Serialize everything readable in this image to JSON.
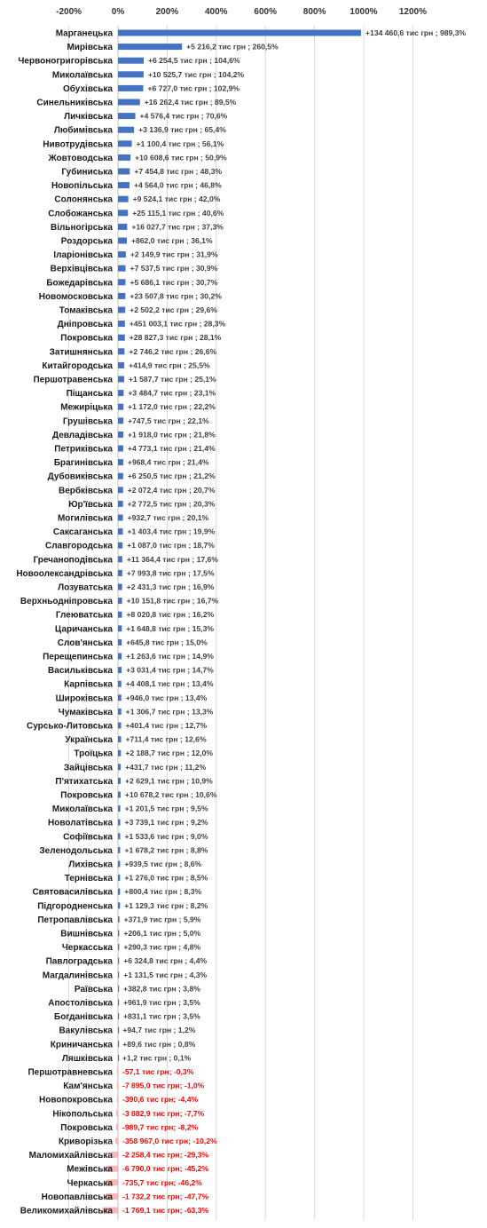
{
  "chart_data": {
    "type": "bar",
    "orientation": "horizontal",
    "xlim": [
      -200,
      1200
    ],
    "tick_values": [
      -200,
      0,
      200,
      400,
      600,
      800,
      1000,
      1200
    ],
    "tick_labels": [
      "-200%",
      "0%",
      "200%",
      "400%",
      "600%",
      "800%",
      "1000%",
      "1200%"
    ],
    "grid": true,
    "colors": {
      "positive": "#4472C4",
      "negative": "#F4B6B6",
      "positive_label": "#404040",
      "negative_label": "#FF0000",
      "grid": "#D9D9D9"
    },
    "categories": [
      "Марганецька",
      "Мирівська",
      "Червоногригорівська",
      "Миколаївська",
      "Обухівська",
      "Синельниківська",
      "Личківська",
      "Любимівська",
      "Нивотрудівська",
      "Жовтоводська",
      "Губиниська",
      "Новопільська",
      "Солонянська",
      "Слобожанська",
      "Вільногірська",
      "Роздорська",
      "Іларіонівська",
      "Верхівцівська",
      "Божедарівська",
      "Новомосковська",
      "Томаківська",
      "Дніпровська",
      "Покровська",
      "Затишнянська",
      "Китайгородська",
      "Першотравенська",
      "Піщанська",
      "Межиріцька",
      "Грушівська",
      "Девладівська",
      "Петриківська",
      "Брагинівська",
      "Дубовиківська",
      "Вербківська",
      "Юр'ївська",
      "Могилівська",
      "Саксаганська",
      "Славгородська",
      "Гречаноподівська",
      "Новоолександрівська",
      "Лозуватська",
      "Верхньодніпровська",
      "Глеюватська",
      "Царичанська",
      "Слов'янська",
      "Перещепинська",
      "Васильківська",
      "Карпівська",
      "Широківська",
      "Чумаківська",
      "Сурсько-Литовська",
      "Українська",
      "Троїцька",
      "Зайцівська",
      "П'ятихатська",
      "Покровська",
      "Миколаївська",
      "Новолатівська",
      "Софіївська",
      "Зеленодольська",
      "Лихівська",
      "Тернівська",
      "Святовасилівська",
      "Підгородненська",
      "Петропавлівська",
      "Вишнівська",
      "Черкасська",
      "Павлоградська",
      "Магдалинівська",
      "Раївська",
      "Апостолівська",
      "Богданівська",
      "Вакулівська",
      "Криничанська",
      "Ляшківська",
      "Першотравневська",
      "Кам'янська",
      "Новопокровська",
      "Нікопольська",
      "Покровська",
      "Криворізька",
      "Маломихайлівська",
      "Межівська",
      "Черкаська",
      "Новопавлівська",
      "Великомихайлівська"
    ],
    "values": [
      989.3,
      260.5,
      104.6,
      104.2,
      102.9,
      89.5,
      70.6,
      65.4,
      56.1,
      50.9,
      48.3,
      46.8,
      42.0,
      40.6,
      37.3,
      36.1,
      31.9,
      30.9,
      30.7,
      30.2,
      29.6,
      28.3,
      28.1,
      26.6,
      25.5,
      25.1,
      23.1,
      22.2,
      22.1,
      21.8,
      21.4,
      21.4,
      21.2,
      20.7,
      20.3,
      20.1,
      19.9,
      18.7,
      17.6,
      17.5,
      16.9,
      16.7,
      16.2,
      15.3,
      15.0,
      14.9,
      14.7,
      13.4,
      13.4,
      13.3,
      12.7,
      12.6,
      12.0,
      11.2,
      10.9,
      10.6,
      9.5,
      9.2,
      9.0,
      8.8,
      8.6,
      8.5,
      8.3,
      8.2,
      5.9,
      5.0,
      4.8,
      4.4,
      4.3,
      3.8,
      3.5,
      3.5,
      1.2,
      0.8,
      0.1,
      -0.3,
      -1.0,
      -4.4,
      -7.7,
      -8.2,
      -10.2,
      -29.3,
      -45.2,
      -46.2,
      -47.7,
      -63.3
    ],
    "data_labels": [
      "+134 460,6 тис грн ; 989,3%",
      "+5 216,2 тис грн ; 260,5%",
      "+6 254,5 тис грн ; 104,6%",
      "+10 525,7 тис грн ; 104,2%",
      "+6 727,0 тис грн ; 102,9%",
      "+16 262,4 тис грн ; 89,5%",
      "+4 576,4 тис грн ; 70,6%",
      "+3 136,9 тис грн ; 65,4%",
      "+1 100,4 тис грн ; 56,1%",
      "+10 608,6 тис грн ; 50,9%",
      "+7 454,8 тис грн ; 48,3%",
      "+4 564,0 тис грн ; 46,8%",
      "+9 524,1 тис грн ; 42,0%",
      "+25 115,1 тис грн ; 40,6%",
      "+16 027,7 тис грн ; 37,3%",
      "+862,0 тис грн ; 36,1%",
      "+2 149,9 тис грн ; 31,9%",
      "+7 537,5 тис грн ; 30,9%",
      "+5 686,1 тис грн ; 30,7%",
      "+23 507,8 тис грн ; 30,2%",
      "+2 502,2 тис грн ; 29,6%",
      "+451 003,1 тис грн ; 28,3%",
      "+28 827,3 тис грн ; 28,1%",
      "+2 746,2 тис грн ; 26,6%",
      "+414,9 тис грн ; 25,5%",
      "+1 587,7 тис грн ; 25,1%",
      "+3 484,7 тис грн ; 23,1%",
      "+1 172,0 тис грн ; 22,2%",
      "+747,5 тис грн ; 22,1%",
      "+1 918,0 тис грн ; 21,8%",
      "+4 773,1 тис грн ; 21,4%",
      "+968,4 тис грн ; 21,4%",
      "+6 250,5 тис грн ; 21,2%",
      "+2 072,4 тис грн ; 20,7%",
      "+2 772,5 тис грн ; 20,3%",
      "+932,7 тис грн ; 20,1%",
      "+1 403,4 тис грн ; 19,9%",
      "+1 087,0 тис грн ; 18,7%",
      "+11 364,4 тис грн ; 17,6%",
      "+7 993,8 тис грн ; 17,5%",
      "+2 431,3 тис грн ; 16,9%",
      "+10 151,8 тис грн ; 16,7%",
      "+8 020,8 тис грн ; 16,2%",
      "+1 648,8 тис грн ; 15,3%",
      "+645,8 тис грн ; 15,0%",
      "+1 263,6 тис грн ; 14,9%",
      "+3 031,4 тис грн ; 14,7%",
      "+4 408,1 тис грн ; 13,4%",
      "+946,0 тис грн ; 13,4%",
      "+1 306,7 тис грн ; 13,3%",
      "+401,4 тис грн ; 12,7%",
      "+711,4 тис грн ; 12,6%",
      "+2 188,7 тис грн ; 12,0%",
      "+431,7 тис грн ; 11,2%",
      "+2 629,1 тис грн ; 10,9%",
      "+10 678,2 тис грн ; 10,6%",
      "+1 201,5 тис грн ; 9,5%",
      "+3 739,1 тис грн ; 9,2%",
      "+1 533,6 тис грн ; 9,0%",
      "+1 678,2 тис грн ; 8,8%",
      "+939,5 тис грн ; 8,6%",
      "+1 276,0 тис грн ; 8,5%",
      "+800,4 тис грн ; 8,3%",
      "+1 129,3 тис грн ; 8,2%",
      "+371,9 тис грн ; 5,9%",
      "+206,1 тис грн ; 5,0%",
      "+290,3 тис грн ; 4,8%",
      "+6 324,8 тис грн ; 4,4%",
      "+1 131,5 тис грн ; 4,3%",
      "+382,8 тис грн ; 3,8%",
      "+961,9 тис грн ; 3,5%",
      "+831,1 тис грн ; 3,5%",
      "+94,7 тис грн ; 1,2%",
      "+89,6 тис грн ; 0,8%",
      "+1,2 тис грн ; 0,1%",
      "-57,1 тис грн; -0,3%",
      "-7 895,0 тис грн; -1,0%",
      "-390,6 тис грн; -4,4%",
      "-3 882,9 тис грн; -7,7%",
      "-989,7 тис грн; -8,2%",
      "-358 967,0 тис грн; -10,2%",
      "-2 258,4 тис грн; -29,3%",
      "-6 790,0 тис грн; -45,2%",
      "-735,7 тис грн; -46,2%",
      "-1 732,2 тис грн; -47,7%",
      "-1 769,1 тис грн; -63,3%"
    ]
  }
}
